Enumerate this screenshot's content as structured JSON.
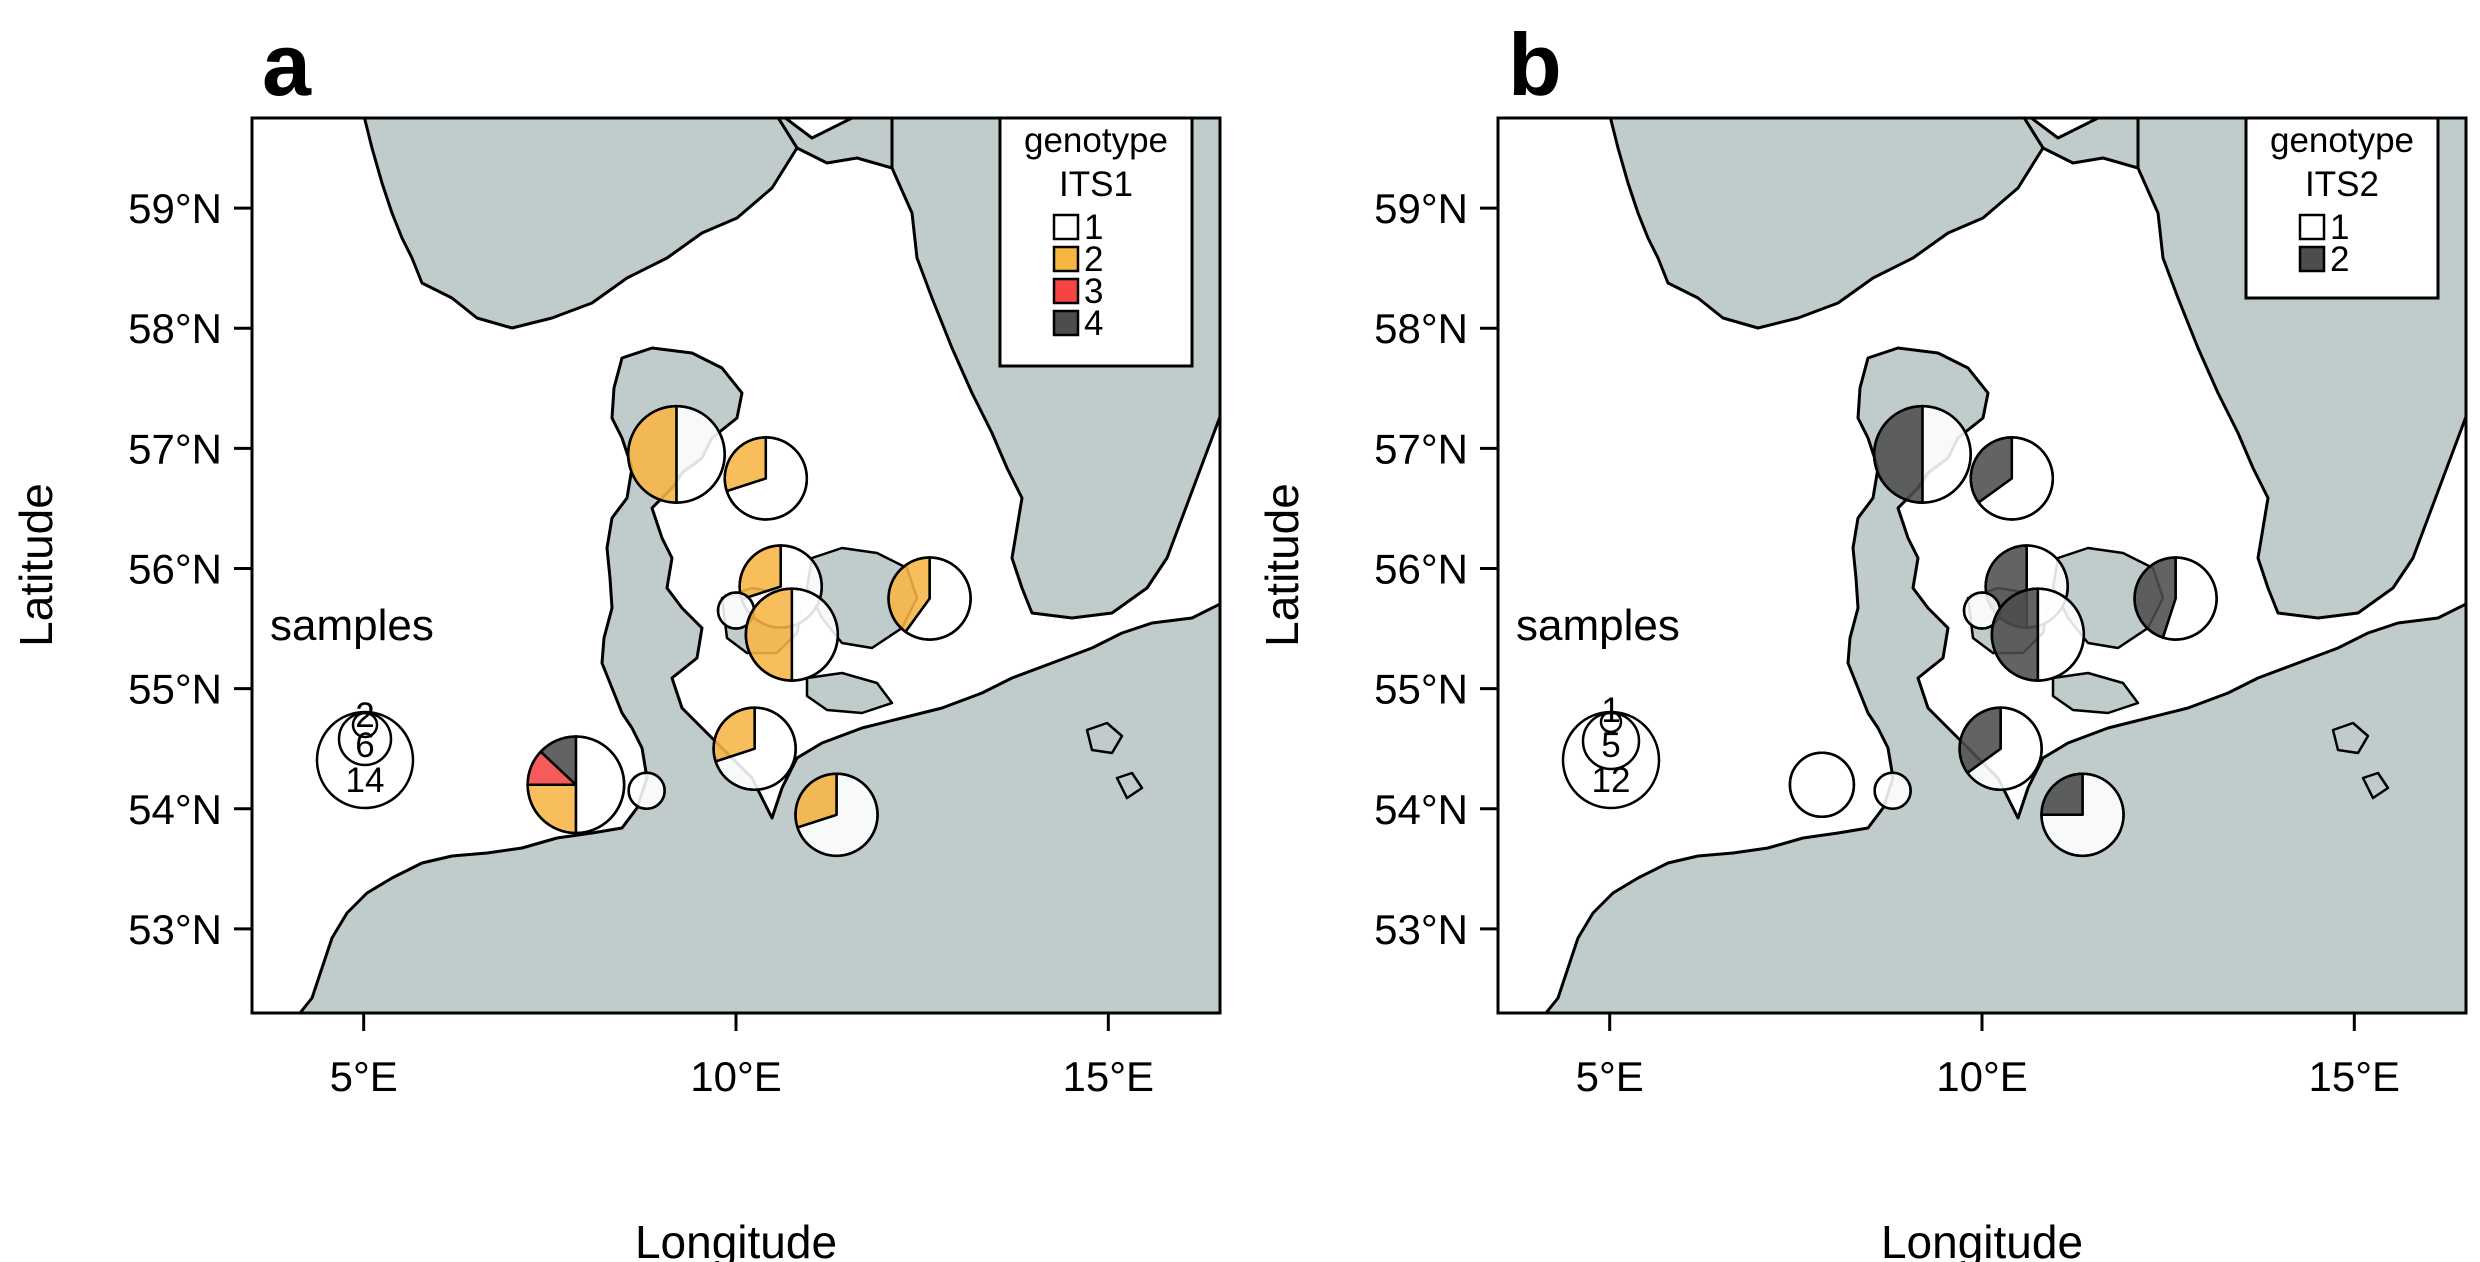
{
  "panels": [
    {
      "id": "a",
      "letter": "a",
      "legend": {
        "title": "genotype",
        "marker": "ITS1",
        "items": [
          {
            "label": "1",
            "color": "#ffffff"
          },
          {
            "label": "2",
            "color": "#f7b544"
          },
          {
            "label": "3",
            "color": "#f44444"
          },
          {
            "label": "4",
            "color": "#4d4d4d"
          }
        ]
      },
      "samples": {
        "label": "samples",
        "sizes": [
          "2",
          "6",
          "14"
        ]
      },
      "pies": [
        {
          "lon": 9.2,
          "lat": 56.95,
          "n": 10,
          "fractions": [
            0.5,
            0.5,
            0,
            0
          ]
        },
        {
          "lon": 10.4,
          "lat": 56.75,
          "n": 7,
          "fractions": [
            0.7,
            0.3,
            0,
            0
          ]
        },
        {
          "lon": 10.6,
          "lat": 55.85,
          "n": 7,
          "fractions": [
            0.7,
            0.3,
            0,
            0
          ]
        },
        {
          "lon": 10.0,
          "lat": 55.65,
          "n": 1,
          "fractions": [
            1,
            0,
            0,
            0
          ]
        },
        {
          "lon": 10.75,
          "lat": 55.45,
          "n": 9,
          "fractions": [
            0.5,
            0.5,
            0,
            0
          ]
        },
        {
          "lon": 12.6,
          "lat": 55.75,
          "n": 7,
          "fractions": [
            0.6,
            0.4,
            0,
            0
          ]
        },
        {
          "lon": 10.25,
          "lat": 54.5,
          "n": 7,
          "fractions": [
            0.7,
            0.3,
            0,
            0
          ]
        },
        {
          "lon": 11.35,
          "lat": 53.95,
          "n": 7,
          "fractions": [
            0.7,
            0.3,
            0,
            0
          ]
        },
        {
          "lon": 7.85,
          "lat": 54.2,
          "n": 10,
          "fractions": [
            0.5,
            0.25,
            0.12,
            0.13
          ]
        },
        {
          "lon": 8.8,
          "lat": 54.15,
          "n": 1,
          "fractions": [
            1,
            0,
            0,
            0
          ]
        }
      ]
    },
    {
      "id": "b",
      "letter": "b",
      "legend": {
        "title": "genotype",
        "marker": "ITS2",
        "items": [
          {
            "label": "1",
            "color": "#ffffff"
          },
          {
            "label": "2",
            "color": "#4d4d4d"
          }
        ]
      },
      "samples": {
        "label": "samples",
        "sizes": [
          "1",
          "5",
          "12"
        ]
      },
      "pies": [
        {
          "lon": 9.2,
          "lat": 56.95,
          "n": 10,
          "fractions": [
            0.5,
            0.5
          ]
        },
        {
          "lon": 10.4,
          "lat": 56.75,
          "n": 7,
          "fractions": [
            0.65,
            0.35
          ]
        },
        {
          "lon": 10.6,
          "lat": 55.85,
          "n": 7,
          "fractions": [
            0.5,
            0.5
          ]
        },
        {
          "lon": 10.0,
          "lat": 55.65,
          "n": 1,
          "fractions": [
            1,
            0
          ]
        },
        {
          "lon": 10.75,
          "lat": 55.45,
          "n": 9,
          "fractions": [
            0.5,
            0.5
          ]
        },
        {
          "lon": 12.6,
          "lat": 55.75,
          "n": 7,
          "fractions": [
            0.55,
            0.45
          ]
        },
        {
          "lon": 10.25,
          "lat": 54.5,
          "n": 7,
          "fractions": [
            0.65,
            0.35
          ]
        },
        {
          "lon": 11.35,
          "lat": 53.95,
          "n": 7,
          "fractions": [
            0.75,
            0.25
          ]
        },
        {
          "lon": 7.85,
          "lat": 54.2,
          "n": 4,
          "fractions": [
            1,
            0
          ]
        },
        {
          "lon": 8.8,
          "lat": 54.15,
          "n": 1,
          "fractions": [
            1,
            0
          ]
        }
      ]
    }
  ],
  "axes": {
    "xlabel": "Longitude",
    "ylabel": "Latitude",
    "xticks": [
      {
        "value": 5,
        "label": "5°E"
      },
      {
        "value": 10,
        "label": "10°E"
      },
      {
        "value": 15,
        "label": "15°E"
      }
    ],
    "yticks": [
      {
        "value": 53,
        "label": "53°N"
      },
      {
        "value": 54,
        "label": "54°N"
      },
      {
        "value": 55,
        "label": "55°N"
      },
      {
        "value": 56,
        "label": "56°N"
      },
      {
        "value": 57,
        "label": "57°N"
      },
      {
        "value": 58,
        "label": "58°N"
      },
      {
        "value": 59,
        "label": "59°N"
      }
    ],
    "xlim": [
      3.5,
      16.5
    ],
    "ylim": [
      52.3,
      59.75
    ]
  },
  "colors": {
    "land": "#c0cccb",
    "sea": "#ffffff",
    "outline": "#000000"
  }
}
